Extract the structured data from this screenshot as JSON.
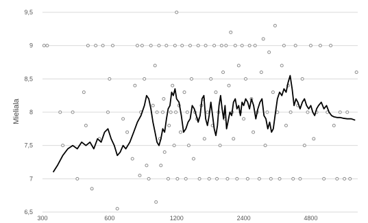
{
  "chart_data": {
    "type": "scatter",
    "title": "",
    "xlabel": "",
    "ylabel": "Mieliala",
    "x_scale": "log2",
    "xlim": [
      300,
      7800
    ],
    "ylim": [
      6.5,
      9.5
    ],
    "grid": "horizontal",
    "legend": "none",
    "x_ticks": [
      300,
      600,
      1200,
      2400,
      4800
    ],
    "x_tick_labels": [
      "300",
      "600",
      "1200",
      "2400",
      "4800"
    ],
    "y_ticks": [
      6.5,
      7,
      7.5,
      8,
      8.5,
      9,
      9.5
    ],
    "y_tick_labels": [
      "6,5",
      "7",
      "7,5",
      "8",
      "8,5",
      "9",
      "9,5"
    ],
    "colors": {
      "points": "#8c8c8c",
      "line": "#000000",
      "grid": "#d9d9d9"
    },
    "series": [
      {
        "type": "scatter",
        "points": [
          [
            305,
            9
          ],
          [
            315,
            9
          ],
          [
            360,
            8
          ],
          [
            370,
            7.5
          ],
          [
            410,
            8
          ],
          [
            430,
            7
          ],
          [
            460,
            8.3
          ],
          [
            470,
            7.8
          ],
          [
            480,
            9
          ],
          [
            500,
            6.85
          ],
          [
            520,
            9
          ],
          [
            540,
            7.6
          ],
          [
            560,
            9
          ],
          [
            590,
            8
          ],
          [
            600,
            8.5
          ],
          [
            620,
            9
          ],
          [
            650,
            6.55
          ],
          [
            690,
            7.9
          ],
          [
            720,
            7.7
          ],
          [
            760,
            7.3
          ],
          [
            780,
            8.4
          ],
          [
            800,
            9
          ],
          [
            820,
            7.05
          ],
          [
            830,
            8
          ],
          [
            840,
            9
          ],
          [
            860,
            8.5
          ],
          [
            880,
            7.2
          ],
          [
            900,
            7
          ],
          [
            920,
            9
          ],
          [
            940,
            8.1
          ],
          [
            960,
            8.7
          ],
          [
            970,
            6.65
          ],
          [
            980,
            8
          ],
          [
            1000,
            9
          ],
          [
            1010,
            7.6
          ],
          [
            1020,
            7.2
          ],
          [
            1040,
            8
          ],
          [
            1050,
            8.2
          ],
          [
            1060,
            7.4
          ],
          [
            1080,
            9
          ],
          [
            1100,
            7
          ],
          [
            1110,
            7.8
          ],
          [
            1130,
            8
          ],
          [
            1150,
            8.4
          ],
          [
            1170,
            7.5
          ],
          [
            1180,
            9
          ],
          [
            1190,
            8
          ],
          [
            1200,
            9.5
          ],
          [
            1210,
            7
          ],
          [
            1230,
            8.1
          ],
          [
            1250,
            7.7
          ],
          [
            1270,
            9
          ],
          [
            1300,
            8.3
          ],
          [
            1320,
            7
          ],
          [
            1340,
            8
          ],
          [
            1360,
            7.5
          ],
          [
            1380,
            9
          ],
          [
            1400,
            8.5
          ],
          [
            1430,
            7.3
          ],
          [
            1450,
            8
          ],
          [
            1480,
            7.9
          ],
          [
            1500,
            9
          ],
          [
            1520,
            7
          ],
          [
            1550,
            8.1
          ],
          [
            1580,
            8.2
          ],
          [
            1600,
            7.6
          ],
          [
            1620,
            9
          ],
          [
            1650,
            8
          ],
          [
            1680,
            7
          ],
          [
            1710,
            8.5
          ],
          [
            1740,
            7.8
          ],
          [
            1770,
            9
          ],
          [
            1800,
            8.3
          ],
          [
            1820,
            7
          ],
          [
            1850,
            8
          ],
          [
            1880,
            7.5
          ],
          [
            1910,
            9
          ],
          [
            1940,
            8.6
          ],
          [
            1970,
            7.9
          ],
          [
            2000,
            9
          ],
          [
            2030,
            7
          ],
          [
            2060,
            8.4
          ],
          [
            2100,
            9.2
          ],
          [
            2130,
            8
          ],
          [
            2160,
            7.6
          ],
          [
            2200,
            9
          ],
          [
            2240,
            7
          ],
          [
            2280,
            8.7
          ],
          [
            2320,
            8
          ],
          [
            2360,
            9
          ],
          [
            2400,
            7.9
          ],
          [
            2450,
            8.5
          ],
          [
            2500,
            7
          ],
          [
            2550,
            9
          ],
          [
            2600,
            8.2
          ],
          [
            2650,
            7.7
          ],
          [
            2700,
            9
          ],
          [
            2760,
            8
          ],
          [
            2820,
            7
          ],
          [
            2880,
            8.6
          ],
          [
            2940,
            9.1
          ],
          [
            3000,
            7.5
          ],
          [
            3060,
            8
          ],
          [
            3120,
            8.9
          ],
          [
            3180,
            7
          ],
          [
            3250,
            8.3
          ],
          [
            3320,
            9.3
          ],
          [
            3400,
            8
          ],
          [
            3480,
            7
          ],
          [
            3560,
            8.7
          ],
          [
            3640,
            9
          ],
          [
            3720,
            7.8
          ],
          [
            3800,
            8.4
          ],
          [
            3900,
            8
          ],
          [
            4000,
            7
          ],
          [
            4100,
            9
          ],
          [
            4200,
            8.1
          ],
          [
            4300,
            7
          ],
          [
            4400,
            8.5
          ],
          [
            4500,
            7.5
          ],
          [
            4650,
            8
          ],
          [
            4800,
            9
          ],
          [
            4950,
            7.6
          ],
          [
            5100,
            8
          ],
          [
            5300,
            9
          ],
          [
            5500,
            7
          ],
          [
            5700,
            8
          ],
          [
            5900,
            9
          ],
          [
            6100,
            7.8
          ],
          [
            6300,
            7
          ],
          [
            6500,
            8
          ],
          [
            6800,
            7
          ],
          [
            7000,
            8
          ],
          [
            7200,
            7
          ],
          [
            7700,
            8.6
          ]
        ]
      },
      {
        "type": "line",
        "points": [
          [
            335,
            7.1
          ],
          [
            350,
            7.2
          ],
          [
            370,
            7.35
          ],
          [
            390,
            7.45
          ],
          [
            410,
            7.5
          ],
          [
            430,
            7.45
          ],
          [
            450,
            7.55
          ],
          [
            470,
            7.5
          ],
          [
            490,
            7.55
          ],
          [
            510,
            7.45
          ],
          [
            530,
            7.6
          ],
          [
            550,
            7.55
          ],
          [
            570,
            7.7
          ],
          [
            590,
            7.75
          ],
          [
            610,
            7.6
          ],
          [
            630,
            7.5
          ],
          [
            650,
            7.35
          ],
          [
            670,
            7.4
          ],
          [
            690,
            7.5
          ],
          [
            710,
            7.45
          ],
          [
            740,
            7.55
          ],
          [
            770,
            7.7
          ],
          [
            800,
            7.85
          ],
          [
            830,
            7.95
          ],
          [
            860,
            8.1
          ],
          [
            880,
            8.25
          ],
          [
            900,
            8.2
          ],
          [
            920,
            8.05
          ],
          [
            940,
            7.85
          ],
          [
            960,
            7.7
          ],
          [
            980,
            7.55
          ],
          [
            1000,
            7.5
          ],
          [
            1020,
            7.6
          ],
          [
            1040,
            7.75
          ],
          [
            1060,
            7.7
          ],
          [
            1080,
            7.9
          ],
          [
            1100,
            8.05
          ],
          [
            1120,
            8.1
          ],
          [
            1140,
            8.3
          ],
          [
            1160,
            8.25
          ],
          [
            1180,
            8.35
          ],
          [
            1200,
            8.2
          ],
          [
            1230,
            8.15
          ],
          [
            1260,
            7.95
          ],
          [
            1290,
            7.7
          ],
          [
            1320,
            7.75
          ],
          [
            1350,
            7.85
          ],
          [
            1380,
            7.9
          ],
          [
            1410,
            8.1
          ],
          [
            1440,
            8.05
          ],
          [
            1470,
            7.95
          ],
          [
            1500,
            7.85
          ],
          [
            1530,
            7.95
          ],
          [
            1560,
            8.2
          ],
          [
            1590,
            8.25
          ],
          [
            1620,
            7.9
          ],
          [
            1650,
            7.8
          ],
          [
            1680,
            7.95
          ],
          [
            1710,
            8.15
          ],
          [
            1740,
            7.95
          ],
          [
            1770,
            7.75
          ],
          [
            1800,
            7.65
          ],
          [
            1830,
            7.8
          ],
          [
            1860,
            8.1
          ],
          [
            1890,
            8.25
          ],
          [
            1920,
            8.05
          ],
          [
            1950,
            7.9
          ],
          [
            1980,
            8.1
          ],
          [
            2010,
            7.75
          ],
          [
            2040,
            7.85
          ],
          [
            2080,
            8
          ],
          [
            2120,
            7.95
          ],
          [
            2160,
            8.15
          ],
          [
            2200,
            8.2
          ],
          [
            2240,
            8.05
          ],
          [
            2280,
            8.1
          ],
          [
            2320,
            7.95
          ],
          [
            2360,
            8.15
          ],
          [
            2400,
            8.1
          ],
          [
            2450,
            8.2
          ],
          [
            2500,
            8.15
          ],
          [
            2550,
            8.05
          ],
          [
            2600,
            8.2
          ],
          [
            2660,
            8.1
          ],
          [
            2720,
            7.9
          ],
          [
            2780,
            8.05
          ],
          [
            2840,
            8.15
          ],
          [
            2900,
            8.2
          ],
          [
            2960,
            7.95
          ],
          [
            3020,
            7.9
          ],
          [
            3080,
            7.75
          ],
          [
            3140,
            7.85
          ],
          [
            3200,
            7.7
          ],
          [
            3260,
            7.75
          ],
          [
            3320,
            7.95
          ],
          [
            3400,
            8.2
          ],
          [
            3480,
            8.3
          ],
          [
            3560,
            8.25
          ],
          [
            3640,
            8.35
          ],
          [
            3720,
            8.3
          ],
          [
            3800,
            8.45
          ],
          [
            3880,
            8.55
          ],
          [
            3960,
            8.35
          ],
          [
            4040,
            8.1
          ],
          [
            4120,
            8.2
          ],
          [
            4200,
            8.15
          ],
          [
            4300,
            8.05
          ],
          [
            4400,
            8.15
          ],
          [
            4500,
            8.2
          ],
          [
            4600,
            8.1
          ],
          [
            4700,
            8.05
          ],
          [
            4800,
            8.1
          ],
          [
            4900,
            8
          ],
          [
            5000,
            7.95
          ],
          [
            5100,
            8.05
          ],
          [
            5200,
            8.1
          ],
          [
            5350,
            8.15
          ],
          [
            5500,
            8.05
          ],
          [
            5650,
            8.1
          ],
          [
            5800,
            8
          ],
          [
            5950,
            7.95
          ],
          [
            6100,
            7.93
          ],
          [
            6300,
            7.92
          ],
          [
            6500,
            7.92
          ],
          [
            6700,
            7.91
          ],
          [
            7000,
            7.9
          ],
          [
            7300,
            7.9
          ],
          [
            7600,
            7.88
          ]
        ]
      }
    ]
  }
}
